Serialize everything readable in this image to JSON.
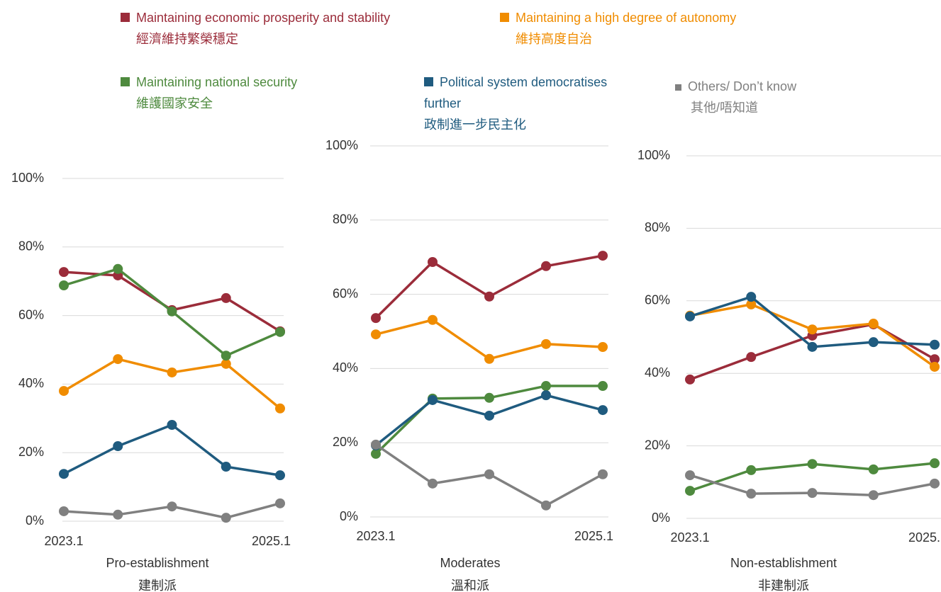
{
  "chart_data": [
    {
      "type": "line",
      "title": "Pro-establishment",
      "subtitle": "建制派",
      "categories": [
        "2023.1",
        null,
        null,
        null,
        "2025.1"
      ],
      "ylim": [
        0,
        100
      ],
      "yticks": [
        {
          "value": 0,
          "label": "0%"
        },
        {
          "value": 20,
          "label": "20%"
        },
        {
          "value": 40,
          "label": "40%"
        },
        {
          "value": 60,
          "label": "60%"
        },
        {
          "value": 80,
          "label": "80%"
        },
        {
          "value": 100,
          "label": "100%"
        }
      ],
      "grid": true,
      "series": [
        {
          "name": "Maintaining economic prosperity and stability",
          "name_zh": "經濟維持繁榮穩定",
          "color": "#9b2c3a",
          "values": [
            72.7,
            71.7,
            61.6,
            65.1,
            55.4
          ]
        },
        {
          "name": "Maintaining a high degree of autonomy",
          "name_zh": "維持高度自治",
          "color": "#f08c00",
          "values": [
            38.0,
            47.3,
            43.4,
            45.9,
            32.9
          ]
        },
        {
          "name": "Maintaining national security",
          "name_zh": "維護國家安全",
          "color": "#4e8a3e",
          "values": [
            68.8,
            73.6,
            61.2,
            48.3,
            55.2
          ]
        },
        {
          "name": "Political system democratises further",
          "name_zh": "政制進一步民主化",
          "color": "#1f5b7f",
          "values": [
            13.8,
            21.9,
            28.1,
            15.9,
            13.4
          ]
        },
        {
          "name": "Others/ Don’t know",
          "name_zh": "其他/唔知道",
          "color": "#808080",
          "values": [
            2.9,
            1.9,
            4.3,
            1.0,
            5.2
          ]
        }
      ]
    },
    {
      "type": "line",
      "title": "Moderates",
      "subtitle": "溫和派",
      "categories": [
        "2023.1",
        null,
        null,
        null,
        "2025.1"
      ],
      "ylim": [
        0,
        100
      ],
      "yticks": [
        {
          "value": 0,
          "label": "0%"
        },
        {
          "value": 20,
          "label": "20%"
        },
        {
          "value": 40,
          "label": "40%"
        },
        {
          "value": 60,
          "label": "60%"
        },
        {
          "value": 80,
          "label": "80%"
        },
        {
          "value": 100,
          "label": "100%"
        }
      ],
      "grid": true,
      "series": [
        {
          "name": "Maintaining economic prosperity and stability",
          "name_zh": "經濟維持繁榮穩定",
          "color": "#9b2c3a",
          "values": [
            53.6,
            68.7,
            59.4,
            67.6,
            70.4
          ]
        },
        {
          "name": "Maintaining a high degree of autonomy",
          "name_zh": "維持高度自治",
          "color": "#f08c00",
          "values": [
            49.2,
            53.1,
            42.6,
            46.6,
            45.8
          ]
        },
        {
          "name": "Maintaining national security",
          "name_zh": "維護國家安全",
          "color": "#4e8a3e",
          "values": [
            17.0,
            31.9,
            32.1,
            35.3,
            35.3
          ]
        },
        {
          "name": "Political system democratises further",
          "name_zh": "政制進一步民主化",
          "color": "#1f5b7f",
          "values": [
            19.3,
            31.5,
            27.3,
            32.8,
            28.8
          ]
        },
        {
          "name": "Others/ Don’t know",
          "name_zh": "其他/唔知道",
          "color": "#808080",
          "values": [
            19.5,
            9.0,
            11.5,
            3.1,
            11.5
          ]
        }
      ]
    },
    {
      "type": "line",
      "title": "Non-establishment",
      "subtitle": "非建制派",
      "categories": [
        "2023.1",
        null,
        null,
        null,
        "2025."
      ],
      "ylim": [
        0,
        100
      ],
      "yticks": [
        {
          "value": 0,
          "label": "0%"
        },
        {
          "value": 20,
          "label": "20%"
        },
        {
          "value": 40,
          "label": "40%"
        },
        {
          "value": 60,
          "label": "60%"
        },
        {
          "value": 80,
          "label": "80%"
        },
        {
          "value": 100,
          "label": "100%"
        }
      ],
      "grid": true,
      "series": [
        {
          "name": "Maintaining economic prosperity and stability",
          "name_zh": "經濟維持繁榮穩定",
          "color": "#9b2c3a",
          "values": [
            38.3,
            44.5,
            50.4,
            53.5,
            43.9
          ]
        },
        {
          "name": "Maintaining a high degree of autonomy",
          "name_zh": "維持高度自治",
          "color": "#f08c00",
          "values": [
            55.9,
            59.0,
            52.1,
            53.7,
            41.8
          ]
        },
        {
          "name": "Maintaining national security",
          "name_zh": "維護國家安全",
          "color": "#4e8a3e",
          "values": [
            7.6,
            13.3,
            15.0,
            13.5,
            15.2
          ]
        },
        {
          "name": "Political system democratises further",
          "name_zh": "政制進一步民主化",
          "color": "#1f5b7f",
          "values": [
            55.7,
            61.1,
            47.3,
            48.6,
            47.9
          ]
        },
        {
          "name": "Others/ Don’t know",
          "name_zh": "其他/唔知道",
          "color": "#808080",
          "values": [
            11.9,
            6.8,
            7.0,
            6.4,
            9.6
          ]
        }
      ]
    }
  ]
}
